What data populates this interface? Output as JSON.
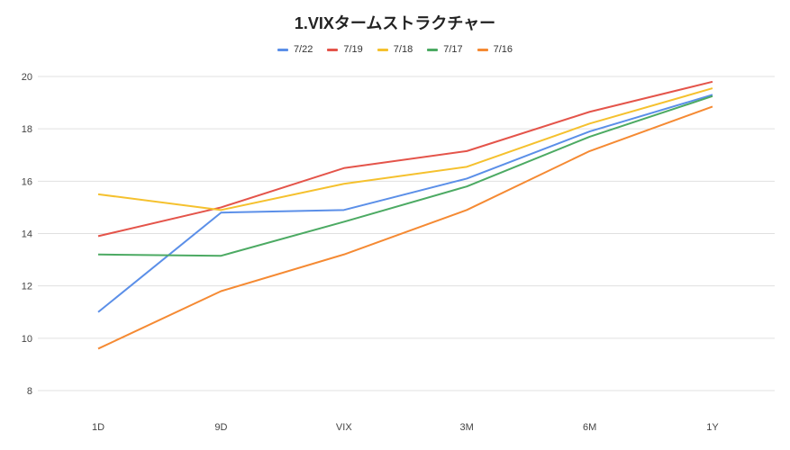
{
  "chart_data": {
    "type": "line",
    "title": "1.VIXタームストラクチャー",
    "xlabel": "",
    "ylabel": "",
    "categories": [
      "1D",
      "9D",
      "VIX",
      "3M",
      "6M",
      "1Y"
    ],
    "ylim": [
      8,
      20
    ],
    "yticks": [
      8,
      10,
      12,
      14,
      16,
      18,
      20
    ],
    "grid": true,
    "legend_position": "top",
    "series": [
      {
        "name": "7/22",
        "color": "#5b8fe8",
        "values": [
          11.0,
          14.8,
          14.9,
          16.1,
          17.9,
          19.3
        ]
      },
      {
        "name": "7/19",
        "color": "#e4544a",
        "values": [
          13.9,
          15.0,
          16.5,
          17.15,
          18.65,
          19.8
        ]
      },
      {
        "name": "7/18",
        "color": "#f5c12e",
        "values": [
          15.5,
          14.9,
          15.9,
          16.55,
          18.2,
          19.55
        ]
      },
      {
        "name": "7/17",
        "color": "#4caa63",
        "values": [
          13.2,
          13.15,
          14.45,
          15.8,
          17.7,
          19.25
        ]
      },
      {
        "name": "7/16",
        "color": "#f58a33",
        "values": [
          9.6,
          11.8,
          13.2,
          14.9,
          17.15,
          18.85
        ]
      }
    ]
  }
}
